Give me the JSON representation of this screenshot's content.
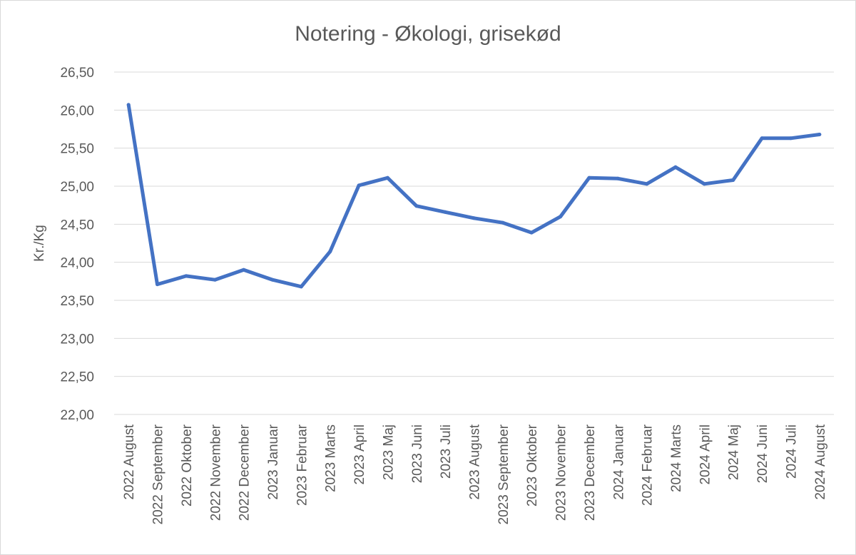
{
  "chart_data": {
    "type": "line",
    "title": "Notering - Økologi, grisekød",
    "xlabel": "",
    "ylabel": "Kr./Kg",
    "ylim": [
      22.0,
      26.5
    ],
    "ytick_step": 0.5,
    "yticks": [
      "22,00",
      "22,50",
      "23,00",
      "23,50",
      "24,00",
      "24,50",
      "25,00",
      "25,50",
      "26,00",
      "26,50"
    ],
    "grid": true,
    "series_color": "#4472c4",
    "categories": [
      "2022 August",
      "2022 September",
      "2022 Oktober",
      "2022 November",
      "2022 December",
      "2023 Januar",
      "2023 Februar",
      "2023 Marts",
      "2023 April",
      "2023 Maj",
      "2023 Juni",
      "2023 Juli",
      "2023 August",
      "2023 September",
      "2023 Oktober",
      "2023 November",
      "2023 December",
      "2024 Januar",
      "2024 Februar",
      "2024 Marts",
      "2024 April",
      "2024 Maj",
      "2024 Juni",
      "2024 Juli",
      "2024 August"
    ],
    "series": [
      {
        "values": [
          26.07,
          23.71,
          23.82,
          23.77,
          23.9,
          23.77,
          23.68,
          24.14,
          25.01,
          25.11,
          24.74,
          24.66,
          24.58,
          24.52,
          24.39,
          24.6,
          25.11,
          25.1,
          25.03,
          25.25,
          25.03,
          25.08,
          25.63,
          25.63,
          25.68
        ]
      }
    ]
  }
}
